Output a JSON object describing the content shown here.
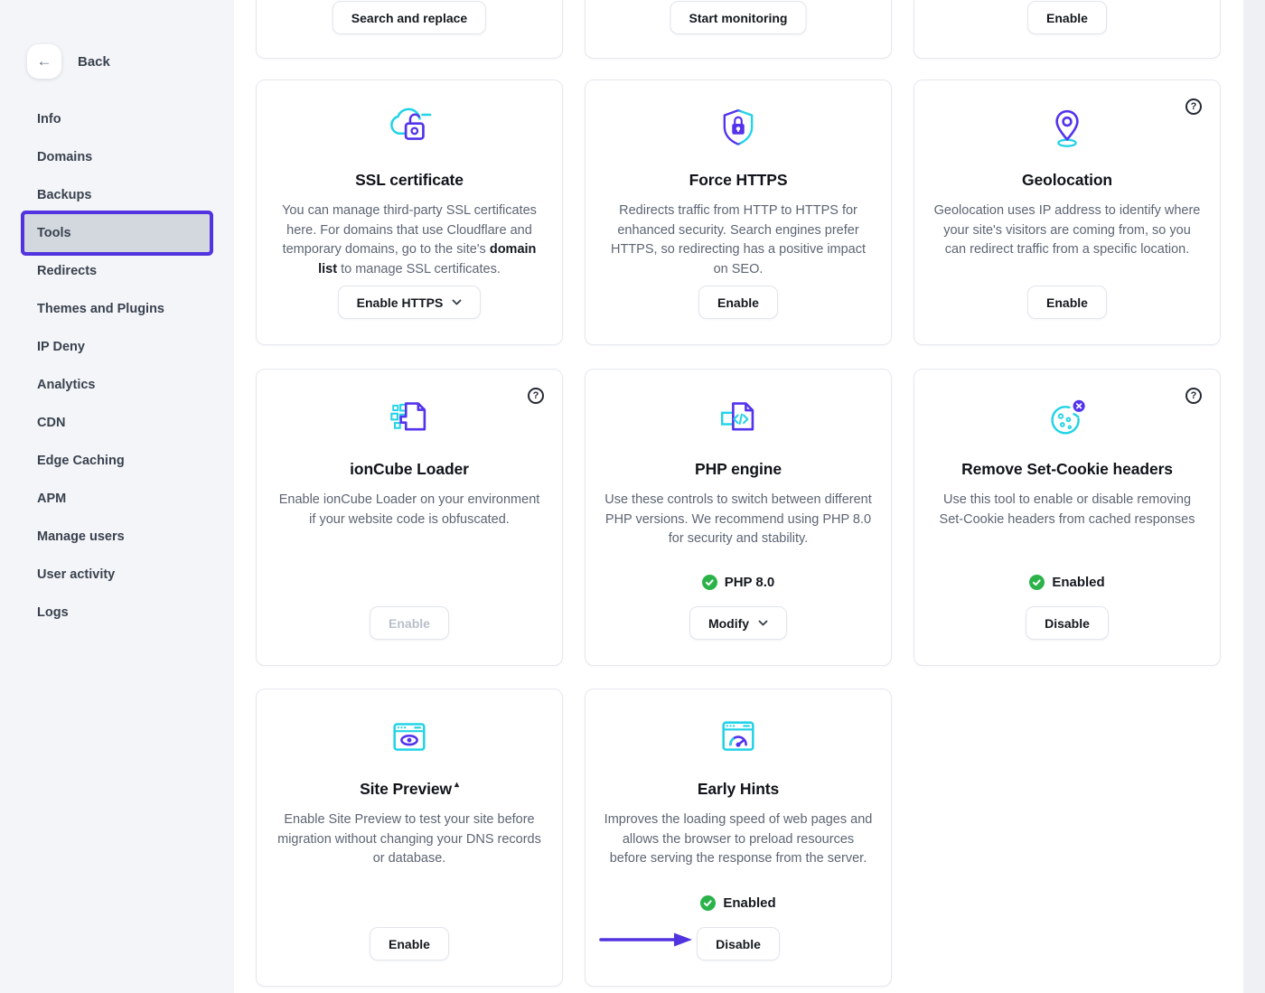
{
  "colors": {
    "purple": "#5333ed",
    "cyan": "#22d3e6",
    "green": "#2bb34a",
    "annotation_purple": "#5233e0",
    "active_item_bg": "#d3d8de",
    "sidebar_bg": "#f4f5f8"
  },
  "sidebar": {
    "back_label": "Back",
    "back_icon": "arrow-left-icon",
    "items": [
      {
        "label": "Info",
        "active": false
      },
      {
        "label": "Domains",
        "active": false
      },
      {
        "label": "Backups",
        "active": false
      },
      {
        "label": "Tools",
        "active": true
      },
      {
        "label": "Redirects",
        "active": false
      },
      {
        "label": "Themes and Plugins",
        "active": false
      },
      {
        "label": "IP Deny",
        "active": false
      },
      {
        "label": "Analytics",
        "active": false
      },
      {
        "label": "CDN",
        "active": false
      },
      {
        "label": "Edge Caching",
        "active": false
      },
      {
        "label": "APM",
        "active": false
      },
      {
        "label": "Manage users",
        "active": false
      },
      {
        "label": "User activity",
        "active": false
      },
      {
        "label": "Logs",
        "active": false
      }
    ]
  },
  "top_row": {
    "cards": [
      {
        "button": "Search and replace"
      },
      {
        "button": "Start monitoring"
      },
      {
        "button": "Enable"
      }
    ]
  },
  "cards": [
    {
      "id": "ssl-certificate",
      "icon": "ssl-cloud-lock-icon",
      "title": "SSL certificate",
      "body_parts": {
        "pre": "You can manage third-party SSL certificates here. For domains that use Cloudflare and temporary domains, go to the site's ",
        "link": "domain list",
        "post": " to manage SSL certificates."
      },
      "button": {
        "label": "Enable HTTPS",
        "caret": true,
        "disabled": false
      },
      "help": false
    },
    {
      "id": "force-https",
      "icon": "shield-lock-icon",
      "title": "Force HTTPS",
      "body": "Redirects traffic from HTTP to HTTPS for enhanced security. Search engines prefer HTTPS, so redirecting has a positive impact on SEO.",
      "button": {
        "label": "Enable",
        "caret": false,
        "disabled": false
      },
      "help": false
    },
    {
      "id": "geolocation",
      "icon": "map-pin-icon",
      "title": "Geolocation",
      "body": "Geolocation uses IP address to identify where your site's visitors are coming from, so you can redirect traffic from a specific location.",
      "button": {
        "label": "Enable",
        "caret": false,
        "disabled": false
      },
      "help": true
    },
    {
      "id": "ioncube-loader",
      "icon": "document-blocks-icon",
      "title": "ionCube Loader",
      "body": "Enable ionCube Loader on your environment if your website code is obfuscated.",
      "button": {
        "label": "Enable",
        "caret": false,
        "disabled": true
      },
      "help": true
    },
    {
      "id": "php-engine",
      "icon": "document-code-icon",
      "title": "PHP engine",
      "body": "Use these controls to switch between different PHP versions. We recommend using PHP 8.0 for security and stability.",
      "status": "PHP 8.0",
      "button": {
        "label": "Modify",
        "caret": true,
        "disabled": false
      },
      "help": false
    },
    {
      "id": "remove-set-cookie-headers",
      "icon": "cookie-remove-icon",
      "title": "Remove Set-Cookie headers",
      "body": "Use this tool to enable or disable removing Set-Cookie headers from cached responses",
      "status": "Enabled",
      "button": {
        "label": "Disable",
        "caret": false,
        "disabled": false
      },
      "help": true
    },
    {
      "id": "site-preview",
      "icon": "browser-eye-icon",
      "title": "Site Preview",
      "title_suffix": "▴",
      "body": "Enable Site Preview to test your site before migration without changing your DNS records or database.",
      "button": {
        "label": "Enable",
        "caret": false,
        "disabled": false
      },
      "help": false
    },
    {
      "id": "early-hints",
      "icon": "browser-speedometer-icon",
      "title": "Early Hints",
      "body": "Improves the loading speed of web pages and allows the browser to preload resources before serving the response from the server.",
      "status": "Enabled",
      "button": {
        "label": "Disable",
        "caret": false,
        "disabled": false
      },
      "help": false,
      "annotation_arrow": true
    }
  ]
}
